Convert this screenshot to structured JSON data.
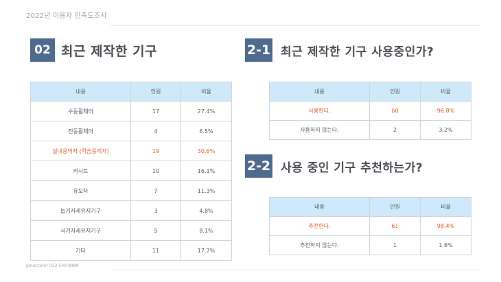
{
  "header": {
    "title": "2022년 이용자 만족도조사"
  },
  "footer": {
    "text": "pmeccorkr  032-540-8989"
  },
  "section1": {
    "badge": "02",
    "title": "최근 제작한 기구",
    "headers": [
      "내용",
      "인원",
      "비율"
    ],
    "rows": [
      {
        "name": "수동휠체어",
        "count": "17",
        "ratio": "27.4%",
        "highlight": false
      },
      {
        "name": "전동휠체어",
        "count": "4",
        "ratio": "6.5%",
        "highlight": false
      },
      {
        "name": "실내용의자 (학습용의자)",
        "count": "19",
        "ratio": "30.6%",
        "highlight": true
      },
      {
        "name": "카시트",
        "count": "10",
        "ratio": "16.1%",
        "highlight": false
      },
      {
        "name": "유모차",
        "count": "7",
        "ratio": "11.3%",
        "highlight": false
      },
      {
        "name": "눕기자세유지기구",
        "count": "3",
        "ratio": "4.8%",
        "highlight": false
      },
      {
        "name": "서기자세유지기구",
        "count": "5",
        "ratio": "8.1%",
        "highlight": false
      },
      {
        "name": "기타",
        "count": "11",
        "ratio": "17.7%",
        "highlight": false
      }
    ]
  },
  "section2_1": {
    "badge": "2-1",
    "title": "최근 제작한 기구 사용중인가?",
    "headers": [
      "내용",
      "인원",
      "비율"
    ],
    "rows": [
      {
        "name": "사용한다.",
        "count": "60",
        "ratio": "96.8%",
        "highlight": true
      },
      {
        "name": "사용하지 않는다.",
        "count": "2",
        "ratio": "3.2%",
        "highlight": false
      }
    ]
  },
  "section2_2": {
    "badge": "2-2",
    "title": "사용 중인 기구 추천하는가?",
    "headers": [
      "내용",
      "인원",
      "비율"
    ],
    "rows": [
      {
        "name": "추천한다.",
        "count": "61",
        "ratio": "98.4%",
        "highlight": true
      },
      {
        "name": "추천하지 않는다.",
        "count": "1",
        "ratio": "1.6%",
        "highlight": false
      }
    ]
  },
  "colors": {
    "badge": "#4e6a8d",
    "header_fill": "#cde9fa",
    "highlight_text": "#e05c2e",
    "title_text": "#4a4f55"
  }
}
